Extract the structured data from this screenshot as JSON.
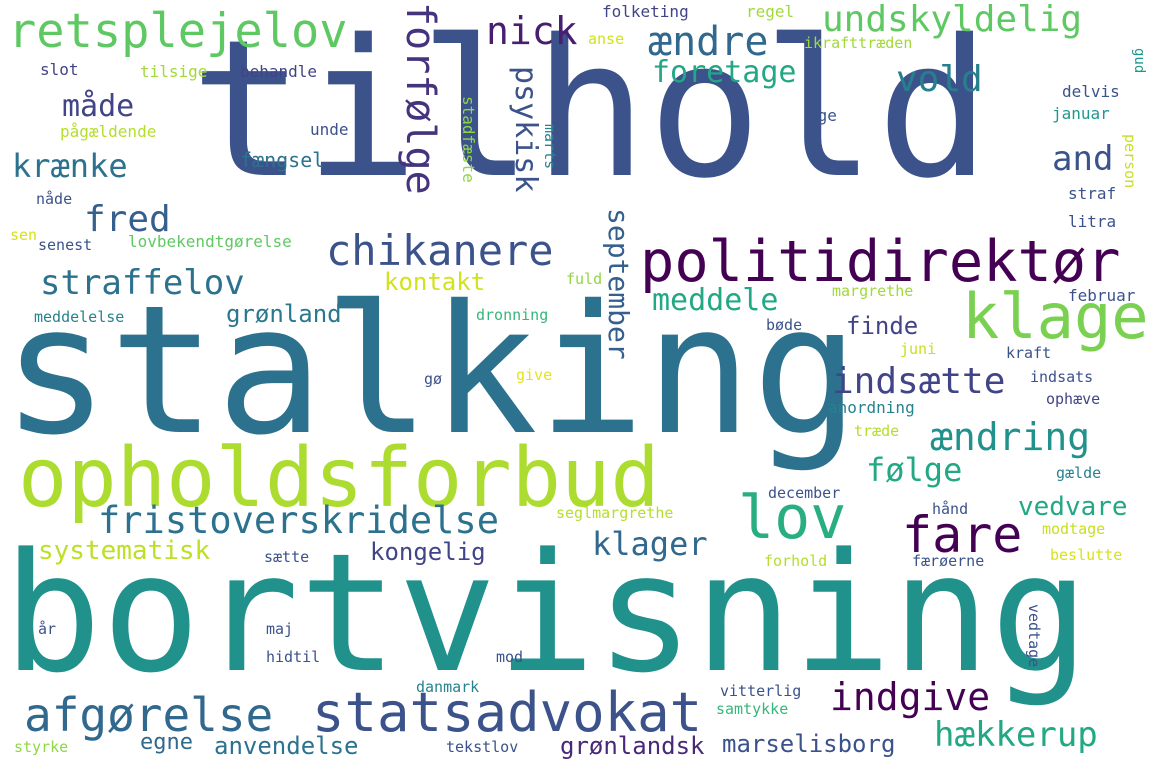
{
  "words": [
    {
      "text": "tilhold",
      "color": "#3b528b"
    },
    {
      "text": "stalking",
      "color": "#2c728e"
    },
    {
      "text": "bortvisning",
      "color": "#21918c"
    },
    {
      "text": "opholdsforbud",
      "color": "#addc30"
    },
    {
      "text": "politidirektør",
      "color": "#440154"
    },
    {
      "text": "statsadvokat",
      "color": "#3b528b"
    },
    {
      "text": "afgørelse",
      "color": "#31688e"
    },
    {
      "text": "retsplejelov",
      "color": "#5ec962"
    },
    {
      "text": "klage",
      "color": "#7ad151"
    },
    {
      "text": "fristoverskridelse",
      "color": "#2c728e"
    },
    {
      "text": "chikanere",
      "color": "#3b528b"
    },
    {
      "text": "lov",
      "color": "#28ae80"
    },
    {
      "text": "fare",
      "color": "#440154"
    },
    {
      "text": "undskyldelig",
      "color": "#5ec962"
    },
    {
      "text": "ændre",
      "color": "#31688e"
    },
    {
      "text": "indsætte",
      "color": "#414487"
    },
    {
      "text": "ændring",
      "color": "#21918c"
    },
    {
      "text": "straffelov",
      "color": "#2c728e"
    },
    {
      "text": "forfølge",
      "color": "#46337e"
    },
    {
      "text": "nick",
      "color": "#481f70"
    },
    {
      "text": "vold",
      "color": "#277f8e"
    },
    {
      "text": "foretage",
      "color": "#22a884"
    },
    {
      "text": "måde",
      "color": "#414487"
    },
    {
      "text": "krænke",
      "color": "#2c728e"
    },
    {
      "text": "fred",
      "color": "#355f8d"
    },
    {
      "text": "and",
      "color": "#3b528b"
    },
    {
      "text": "psykisk",
      "color": "#3b528b"
    },
    {
      "text": "meddele",
      "color": "#22a884"
    },
    {
      "text": "september",
      "color": "#355f8d"
    },
    {
      "text": "indgive",
      "color": "#440154"
    },
    {
      "text": "hækkerup",
      "color": "#22a884"
    },
    {
      "text": "klager",
      "color": "#31688e"
    },
    {
      "text": "følge",
      "color": "#22a884"
    },
    {
      "text": "systematisk",
      "color": "#bddf26"
    },
    {
      "text": "kongelig",
      "color": "#414487"
    },
    {
      "text": "vedvare",
      "color": "#22a884"
    },
    {
      "text": "marselisborg",
      "color": "#3b528b"
    },
    {
      "text": "grønlandsk",
      "color": "#482878"
    },
    {
      "text": "anvendelse",
      "color": "#2c728e"
    },
    {
      "text": "egne",
      "color": "#31688e"
    },
    {
      "text": "kontakt",
      "color": "#d2e21b"
    },
    {
      "text": "grønland",
      "color": "#2a788e"
    },
    {
      "text": "finde",
      "color": "#414487"
    },
    {
      "text": "fængsel",
      "color": "#2c728e"
    },
    {
      "text": "folketing",
      "color": "#414487"
    },
    {
      "text": "regel",
      "color": "#a0da39"
    },
    {
      "text": "anse",
      "color": "#d2e21b"
    },
    {
      "text": "ikrafttræden",
      "color": "#a0da39"
    },
    {
      "text": "gud",
      "color": "#1f988b"
    },
    {
      "text": "slot",
      "color": "#414487"
    },
    {
      "text": "tilsige",
      "color": "#a0da39"
    },
    {
      "text": "behandle",
      "color": "#414487"
    },
    {
      "text": "pågældende",
      "color": "#b5de2b"
    },
    {
      "text": "unde",
      "color": "#3b528b"
    },
    {
      "text": "stadfæste",
      "color": "#8fd744"
    },
    {
      "text": "marts",
      "color": "#26828e"
    },
    {
      "text": "uge",
      "color": "#3b528b"
    },
    {
      "text": "delvis",
      "color": "#3b528b"
    },
    {
      "text": "januar",
      "color": "#1f988b"
    },
    {
      "text": "person",
      "color": "#c8e020"
    },
    {
      "text": "straf",
      "color": "#3b528b"
    },
    {
      "text": "litra",
      "color": "#3b528b"
    },
    {
      "text": "nåde",
      "color": "#3b528b"
    },
    {
      "text": "sen",
      "color": "#d8e219"
    },
    {
      "text": "senest",
      "color": "#3b528b"
    },
    {
      "text": "lovbekendtgørelse",
      "color": "#5ec962"
    },
    {
      "text": "fuld",
      "color": "#8fd744"
    },
    {
      "text": "margrethe",
      "color": "#a0da39"
    },
    {
      "text": "februar",
      "color": "#3b528b"
    },
    {
      "text": "meddelelse",
      "color": "#26828e"
    },
    {
      "text": "dronning",
      "color": "#35b779"
    },
    {
      "text": "bøde",
      "color": "#3b528b"
    },
    {
      "text": "juni",
      "color": "#c8e020"
    },
    {
      "text": "kraft",
      "color": "#3b528b"
    },
    {
      "text": "gø",
      "color": "#3b528b"
    },
    {
      "text": "give",
      "color": "#e5e419"
    },
    {
      "text": "indsats",
      "color": "#3b528b"
    },
    {
      "text": "anordning",
      "color": "#26828e"
    },
    {
      "text": "ophæve",
      "color": "#414487"
    },
    {
      "text": "træde",
      "color": "#b5de2b"
    },
    {
      "text": "gælde",
      "color": "#26828e"
    },
    {
      "text": "december",
      "color": "#3b528b"
    },
    {
      "text": "seglmargrethe",
      "color": "#b5de2b"
    },
    {
      "text": "hånd",
      "color": "#3b528b"
    },
    {
      "text": "modtage",
      "color": "#c8e020"
    },
    {
      "text": "sætte",
      "color": "#3b528b"
    },
    {
      "text": "forhold",
      "color": "#b5de2b"
    },
    {
      "text": "færøerne",
      "color": "#3b528b"
    },
    {
      "text": "beslutte",
      "color": "#d8e219"
    },
    {
      "text": "år",
      "color": "#3b528b"
    },
    {
      "text": "maj",
      "color": "#3b528b"
    },
    {
      "text": "vedtage",
      "color": "#3b528b"
    },
    {
      "text": "hidtil",
      "color": "#3b528b"
    },
    {
      "text": "mod",
      "color": "#3b528b"
    },
    {
      "text": "danmark",
      "color": "#26828e"
    },
    {
      "text": "vitterlig",
      "color": "#3b528b"
    },
    {
      "text": "samtykke",
      "color": "#35b779"
    },
    {
      "text": "styrke",
      "color": "#8fd744"
    },
    {
      "text": "tekstlov",
      "color": "#3b528b"
    }
  ]
}
